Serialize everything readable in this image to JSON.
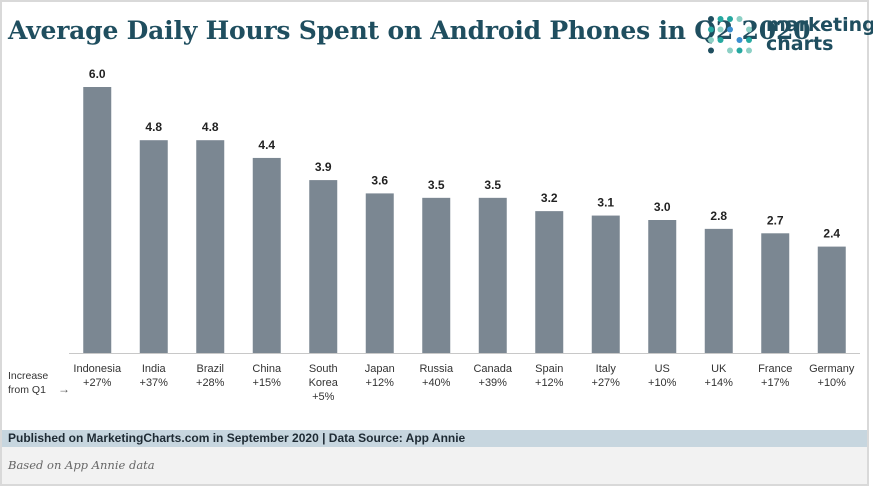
{
  "header": {
    "title": "Average Daily Hours Spent on Android Phones in Q2 2020"
  },
  "logo": {
    "line1": "marketing",
    "line2": "charts",
    "colors": [
      "#1f4e5f",
      "#26a8a0",
      "#8dd0c5",
      "#3b8fd0"
    ]
  },
  "side_note": {
    "line1": "Increase",
    "line2": "from Q1",
    "arrow": "→"
  },
  "chart_data": {
    "type": "bar",
    "title": "Average Daily Hours Spent on Android Phones in Q2 2020",
    "categories": [
      [
        "Indonesia"
      ],
      [
        "India"
      ],
      [
        "Brazil"
      ],
      [
        "China"
      ],
      [
        "South",
        "Korea"
      ],
      [
        "Japan"
      ],
      [
        "Russia"
      ],
      [
        "Canada"
      ],
      [
        "Spain"
      ],
      [
        "Italy"
      ],
      [
        "US"
      ],
      [
        "UK"
      ],
      [
        "France"
      ],
      [
        "Germany"
      ]
    ],
    "values": [
      6.0,
      4.8,
      4.8,
      4.4,
      3.9,
      3.6,
      3.5,
      3.5,
      3.2,
      3.1,
      3.0,
      2.8,
      2.7,
      2.4
    ],
    "value_labels": [
      "6.0",
      "4.8",
      "4.8",
      "4.4",
      "3.9",
      "3.6",
      "3.5",
      "3.5",
      "3.2",
      "3.1",
      "3.0",
      "2.8",
      "2.7",
      "2.4"
    ],
    "increase_from_q1": [
      "+27%",
      "+37%",
      "+28%",
      "+15%",
      "+5%",
      "+12%",
      "+40%",
      "+39%",
      "+12%",
      "+27%",
      "+10%",
      "+14%",
      "+17%",
      "+10%"
    ],
    "xlabel": "",
    "ylabel": "",
    "ylim": [
      0,
      6.0
    ],
    "grid": false,
    "bar_color": "#7b8792"
  },
  "footer": {
    "published": "Published on MarketingCharts.com in September 2020 | Data Source: App Annie",
    "note": "Based on App Annie data"
  }
}
